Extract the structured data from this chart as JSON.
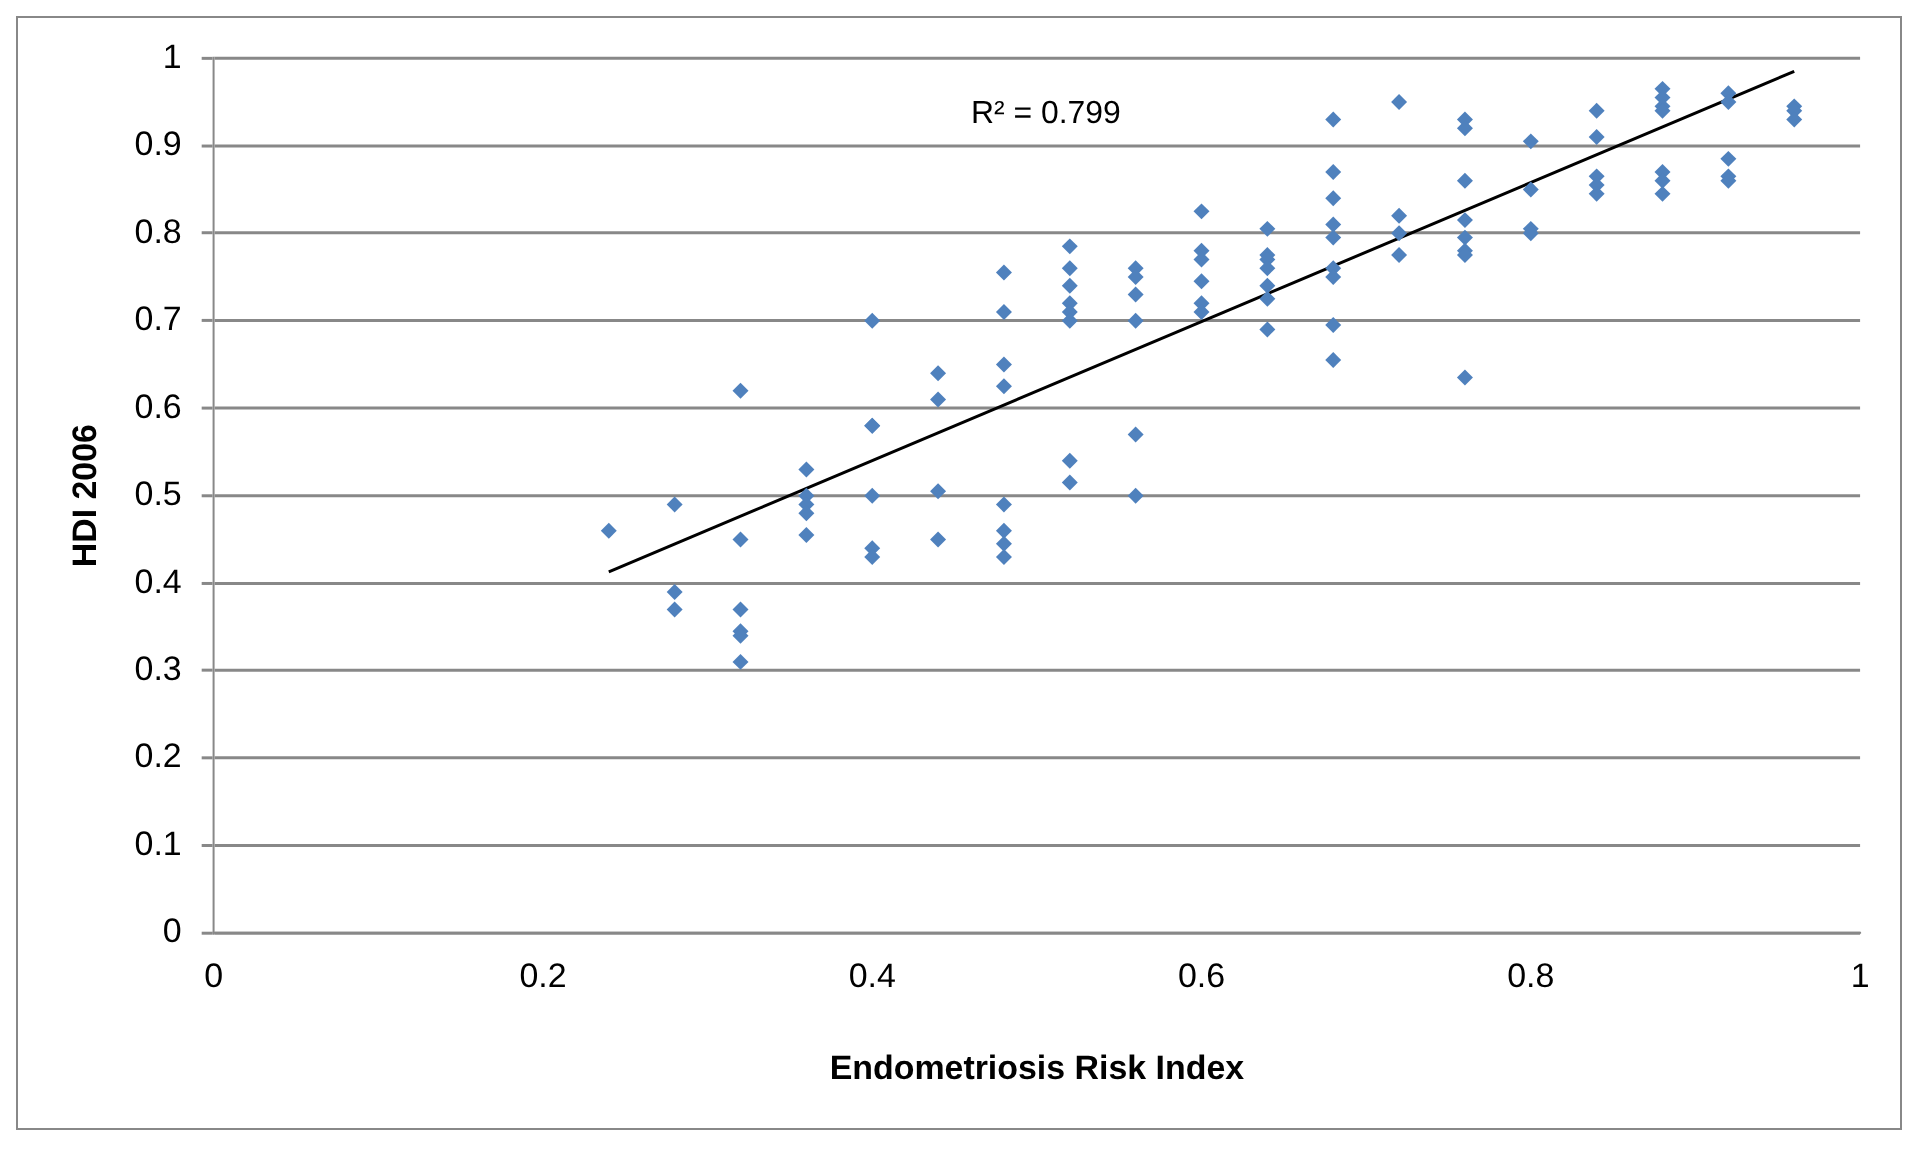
{
  "chart_data": {
    "type": "scatter",
    "xlabel": "Endometriosis Risk Index",
    "ylabel": "HDI 2006",
    "xlim": [
      0,
      1
    ],
    "xticks": [
      0,
      0.2,
      0.4,
      0.6,
      0.8,
      1
    ],
    "ylim": [
      0,
      1
    ],
    "yticks": [
      0,
      0.1,
      0.2,
      0.3,
      0.4,
      0.5,
      0.6,
      0.7,
      0.8,
      0.9,
      1
    ],
    "grid": "y",
    "legend": false,
    "annotations": [
      "R² = 0.799"
    ],
    "series": [
      {
        "type": "scatter",
        "color": "#4f81bd",
        "marker": "diamond",
        "x": [
          0.24,
          0.28,
          0.28,
          0.28,
          0.32,
          0.32,
          0.32,
          0.32,
          0.32,
          0.32,
          0.36,
          0.36,
          0.36,
          0.36,
          0.36,
          0.4,
          0.4,
          0.4,
          0.4,
          0.4,
          0.4,
          0.44,
          0.44,
          0.44,
          0.44,
          0.48,
          0.48,
          0.48,
          0.48,
          0.48,
          0.48,
          0.48,
          0.48,
          0.52,
          0.52,
          0.52,
          0.52,
          0.52,
          0.52,
          0.52,
          0.52,
          0.56,
          0.56,
          0.56,
          0.56,
          0.56,
          0.56,
          0.6,
          0.6,
          0.6,
          0.6,
          0.6,
          0.6,
          0.64,
          0.64,
          0.64,
          0.64,
          0.64,
          0.64,
          0.64,
          0.68,
          0.68,
          0.68,
          0.68,
          0.68,
          0.68,
          0.68,
          0.68,
          0.68,
          0.72,
          0.72,
          0.72,
          0.72,
          0.76,
          0.76,
          0.76,
          0.76,
          0.76,
          0.76,
          0.76,
          0.76,
          0.8,
          0.8,
          0.8,
          0.8,
          0.84,
          0.84,
          0.84,
          0.84,
          0.84,
          0.88,
          0.88,
          0.88,
          0.88,
          0.88,
          0.88,
          0.88,
          0.92,
          0.92,
          0.92,
          0.92,
          0.92,
          0.96,
          0.96,
          0.96
        ],
        "values": [
          0.46,
          0.49,
          0.39,
          0.37,
          0.62,
          0.45,
          0.37,
          0.345,
          0.34,
          0.31,
          0.53,
          0.5,
          0.49,
          0.48,
          0.455,
          0.7,
          0.58,
          0.58,
          0.5,
          0.44,
          0.43,
          0.64,
          0.61,
          0.505,
          0.45,
          0.755,
          0.71,
          0.65,
          0.625,
          0.49,
          0.46,
          0.445,
          0.43,
          0.785,
          0.76,
          0.74,
          0.72,
          0.71,
          0.7,
          0.54,
          0.515,
          0.76,
          0.75,
          0.73,
          0.7,
          0.57,
          0.5,
          0.825,
          0.78,
          0.77,
          0.745,
          0.72,
          0.71,
          0.805,
          0.775,
          0.77,
          0.76,
          0.74,
          0.725,
          0.69,
          0.93,
          0.87,
          0.84,
          0.81,
          0.795,
          0.76,
          0.75,
          0.695,
          0.655,
          0.95,
          0.82,
          0.8,
          0.775,
          0.93,
          0.92,
          0.86,
          0.815,
          0.795,
          0.78,
          0.775,
          0.635,
          0.905,
          0.85,
          0.805,
          0.8,
          0.94,
          0.91,
          0.865,
          0.855,
          0.845,
          0.965,
          0.955,
          0.945,
          0.94,
          0.87,
          0.86,
          0.845,
          0.96,
          0.95,
          0.885,
          0.865,
          0.86,
          0.945,
          0.94,
          0.93
        ]
      },
      {
        "type": "line",
        "color": "#000000",
        "marker": "none",
        "x": [
          0.24,
          0.96
        ],
        "values": [
          0.413,
          0.985
        ]
      }
    ]
  }
}
